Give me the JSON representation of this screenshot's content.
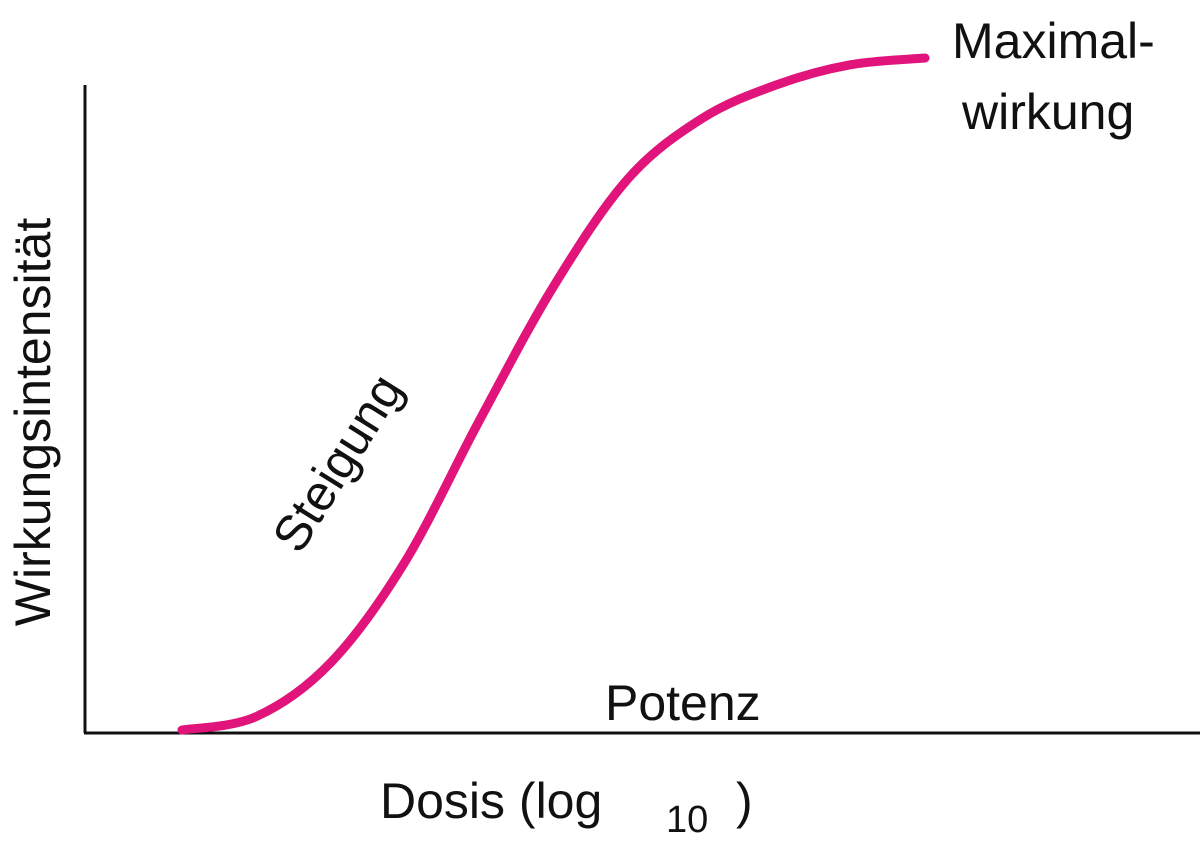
{
  "chart_data": {
    "type": "line",
    "title": "",
    "xlabel": "Dosis (log",
    "xlabel_subscript": "10",
    "xlabel_close": ")",
    "ylabel": "Wirkungsintensität",
    "grid": false,
    "axis_ticks": false,
    "series": [
      {
        "color": "#e0147a",
        "curve_shape": "sigmoid",
        "x": [
          0.0,
          0.1,
          0.2,
          0.3,
          0.4,
          0.5,
          0.6,
          0.7,
          0.8,
          0.9,
          1.0
        ],
        "y": [
          0.0,
          0.02,
          0.1,
          0.25,
          0.46,
          0.66,
          0.82,
          0.91,
          0.96,
          0.99,
          1.0
        ]
      }
    ],
    "annotations": [
      {
        "id": "plateau",
        "text_lines": [
          "Maximal-",
          "wirkung"
        ]
      },
      {
        "id": "slope",
        "text": "Steigung"
      },
      {
        "id": "potency",
        "text": "Potenz"
      }
    ]
  }
}
